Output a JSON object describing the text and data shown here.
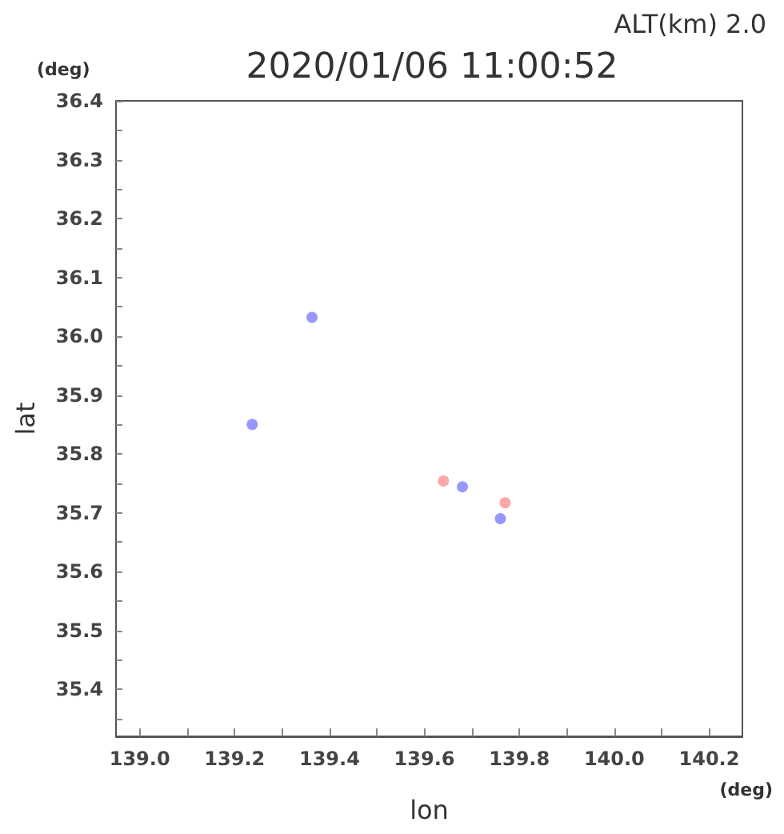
{
  "chart_data": {
    "type": "scatter",
    "title": "2020/01/06 11:00:52",
    "xlabel": "lon",
    "ylabel": "lat",
    "annotations": [
      "ALT(km) 2.0",
      "(deg)",
      "(deg)"
    ],
    "series": [
      {
        "color": "#8c8cff",
        "x": [
          139.363,
          139.237,
          139.68,
          139.76
        ],
        "values": [
          36.032,
          35.85,
          35.744,
          35.69
        ]
      },
      {
        "color": "#ff9c9c",
        "x": [
          139.64,
          139.77
        ],
        "values": [
          35.754,
          35.717
        ]
      }
    ],
    "xlim": [
      138.95,
      140.27
    ],
    "ylim": [
      35.32,
      36.4
    ],
    "xticks": [
      {
        "value": 139.0,
        "label": "139.0"
      },
      {
        "value": 139.1,
        "label": null
      },
      {
        "value": 139.2,
        "label": "139.2"
      },
      {
        "value": 139.3,
        "label": null
      },
      {
        "value": 139.4,
        "label": "139.4"
      },
      {
        "value": 139.5,
        "label": null
      },
      {
        "value": 139.6,
        "label": "139.6"
      },
      {
        "value": 139.7,
        "label": null
      },
      {
        "value": 139.8,
        "label": "139.8"
      },
      {
        "value": 139.9,
        "label": null
      },
      {
        "value": 140.0,
        "label": "140.0"
      },
      {
        "value": 140.1,
        "label": null
      },
      {
        "value": 140.2,
        "label": "140.2"
      }
    ],
    "yticks": [
      {
        "value": 35.35,
        "label": null
      },
      35.4,
      {
        "value": 35.45,
        "label": null
      },
      35.5,
      {
        "value": 35.55,
        "label": null
      },
      35.6,
      {
        "value": 35.65,
        "label": null
      },
      35.7,
      {
        "value": 35.75,
        "label": null
      },
      35.8,
      {
        "value": 35.85,
        "label": null
      },
      35.9,
      {
        "value": 35.95,
        "label": null
      },
      {
        "value": 36.0,
        "label": "36.0"
      },
      {
        "value": 36.05,
        "label": null
      },
      36.1,
      {
        "value": 36.15,
        "label": null
      },
      36.2,
      {
        "value": 36.25,
        "label": null
      },
      36.3,
      {
        "value": 36.35,
        "label": null
      },
      36.4
    ],
    "grid": false,
    "marker": "circle"
  }
}
